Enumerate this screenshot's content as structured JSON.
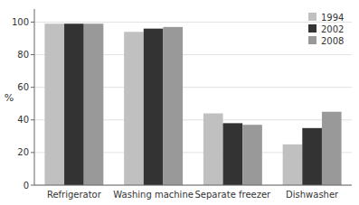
{
  "chart_data": {
    "type": "bar",
    "categories": [
      "Refrigerator",
      "Washing machine",
      "Separate freezer",
      "Dishwasher"
    ],
    "series": [
      {
        "name": "1994",
        "color": "#c0c0c0",
        "values": [
          99,
          94,
          44,
          25
        ]
      },
      {
        "name": "2002",
        "color": "#333333",
        "values": [
          99,
          96,
          38,
          35
        ]
      },
      {
        "name": "2008",
        "color": "#999999",
        "values": [
          99,
          97,
          37,
          45
        ]
      }
    ],
    "y_label": "%",
    "ylim": [
      0,
      108
    ],
    "yticks": [
      0,
      20,
      40,
      60,
      80,
      100
    ],
    "grid": true,
    "legend": "upper right"
  }
}
